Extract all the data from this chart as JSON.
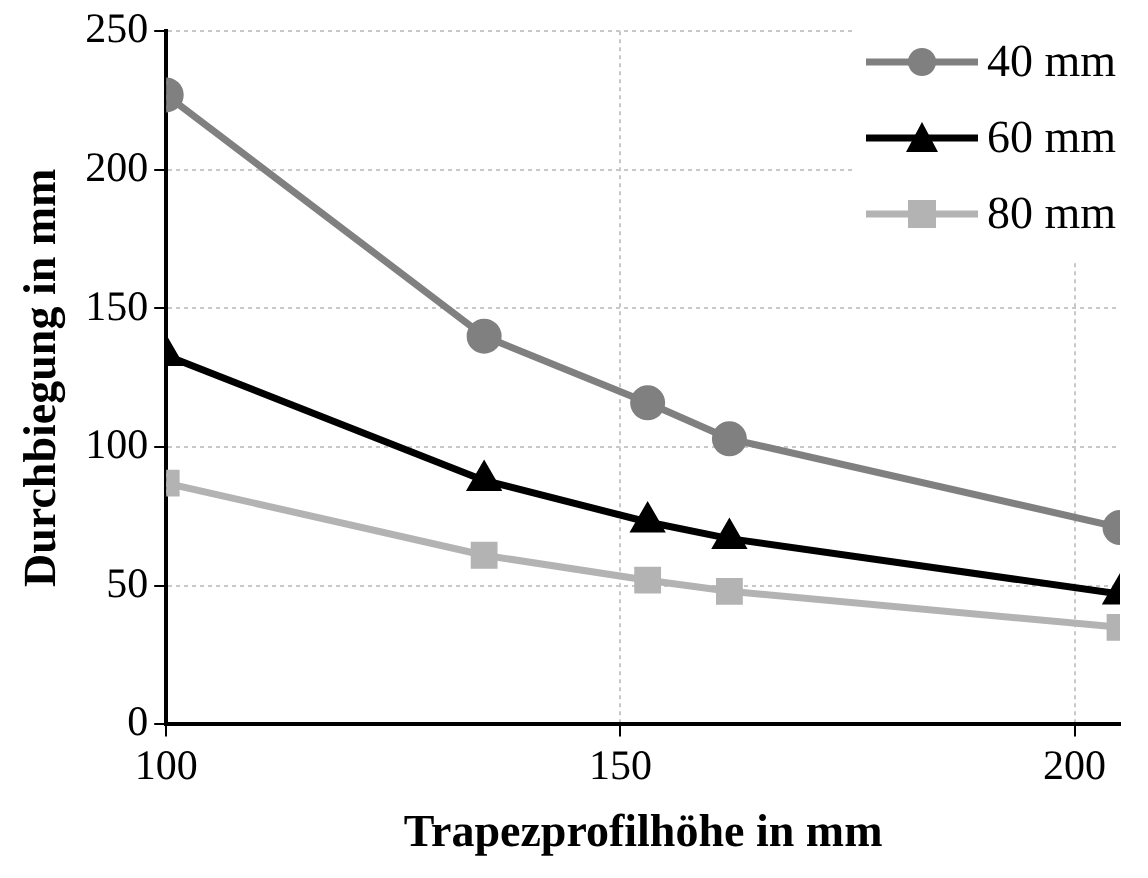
{
  "chart_data": {
    "type": "line",
    "xlabel": "Trapezprofilhöhe in mm",
    "ylabel": "Durchbiegung in mm",
    "x": [
      100,
      135,
      153,
      162,
      205
    ],
    "series": [
      {
        "name": "40 mm",
        "color": "#808080",
        "marker": "circle",
        "values": [
          227,
          140,
          116,
          103,
          71
        ]
      },
      {
        "name": "60 mm",
        "color": "#000000",
        "marker": "triangle",
        "values": [
          133,
          88,
          73,
          67,
          47
        ]
      },
      {
        "name": "80 mm",
        "color": "#b3b3b3",
        "marker": "square",
        "values": [
          87,
          61,
          52,
          48,
          35
        ]
      }
    ],
    "xlim": [
      100,
      205
    ],
    "xticks": [
      100,
      150,
      200
    ],
    "ylim": [
      0,
      250
    ],
    "yticks": [
      0,
      50,
      100,
      150,
      200,
      250
    ],
    "grid": true,
    "legend": "top right",
    "line_style": "solid"
  }
}
